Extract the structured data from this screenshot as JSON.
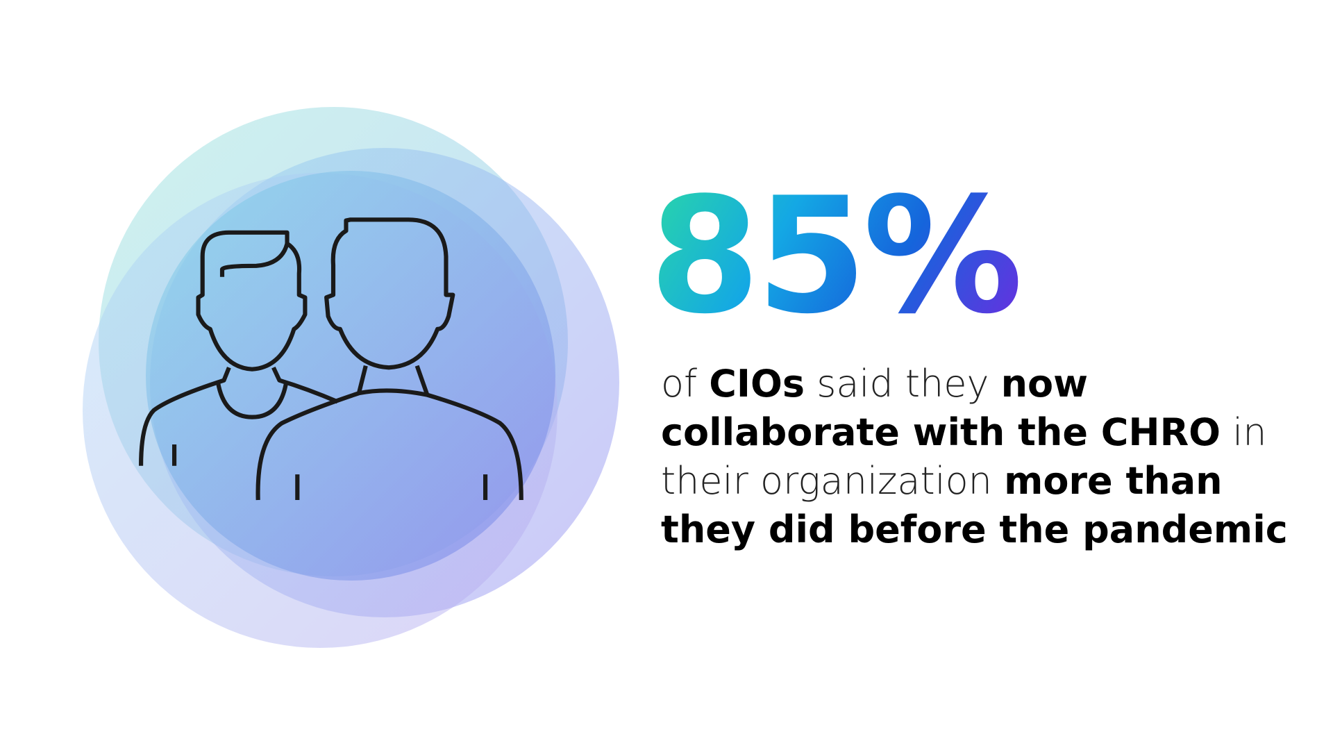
{
  "stat": {
    "figure": "85%",
    "lines": [
      [
        {
          "text": "of",
          "bold": false
        },
        {
          "text": "CIOs",
          "bold": true
        },
        {
          "text": "said they",
          "bold": false
        },
        {
          "text": "now",
          "bold": true
        }
      ],
      [
        {
          "text": "collaborate with the CHRO",
          "bold": true
        },
        {
          "text": "in",
          "bold": false
        }
      ],
      [
        {
          "text": "their organization",
          "bold": false
        },
        {
          "text": "more than",
          "bold": true
        }
      ],
      [
        {
          "text": "they did before the pandemic",
          "bold": true
        }
      ]
    ]
  }
}
